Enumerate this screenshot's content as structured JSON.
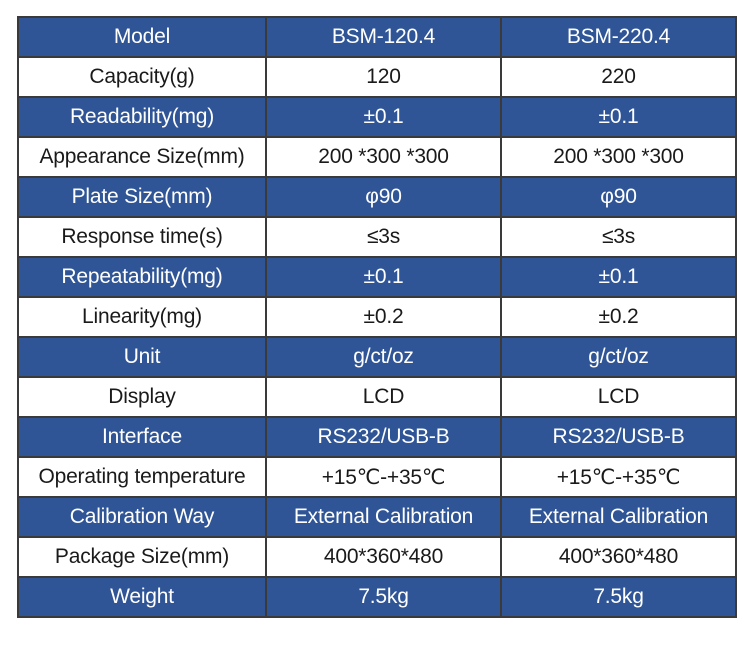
{
  "colors": {
    "header_row_bg": "#2f5596",
    "header_row_text": "#ffffff",
    "plain_row_bg": "#ffffff",
    "plain_row_text": "#1a1a1a",
    "border": "#3a3a3a"
  },
  "table": {
    "rows": [
      {
        "cells": [
          "Model",
          "BSM-120.4",
          "BSM-220.4"
        ]
      },
      {
        "cells": [
          "Capacity(g)",
          "120",
          "220"
        ]
      },
      {
        "cells": [
          "Readability(mg)",
          "±0.1",
          "±0.1"
        ]
      },
      {
        "cells": [
          "Appearance Size(mm)",
          "200 *300 *300",
          "200 *300 *300"
        ]
      },
      {
        "cells": [
          "Plate Size(mm)",
          "φ90",
          "φ90"
        ]
      },
      {
        "cells": [
          "Response time(s)",
          "≤3s",
          "≤3s"
        ]
      },
      {
        "cells": [
          "Repeatability(mg)",
          "±0.1",
          "±0.1"
        ]
      },
      {
        "cells": [
          "Linearity(mg)",
          "±0.2",
          "±0.2"
        ]
      },
      {
        "cells": [
          "Unit",
          "g/ct/oz",
          "g/ct/oz"
        ]
      },
      {
        "cells": [
          "Display",
          "LCD",
          "LCD"
        ]
      },
      {
        "cells": [
          "Interface",
          "RS232/USB-B",
          "RS232/USB-B"
        ]
      },
      {
        "cells": [
          "Operating temperature",
          "+15℃-+35℃",
          "+15℃-+35℃"
        ]
      },
      {
        "cells": [
          "Calibration Way",
          "External Calibration",
          "External Calibration"
        ]
      },
      {
        "cells": [
          "Package Size(mm)",
          "400*360*480",
          "400*360*480"
        ]
      },
      {
        "cells": [
          "Weight",
          "7.5kg",
          "7.5kg"
        ]
      }
    ]
  }
}
